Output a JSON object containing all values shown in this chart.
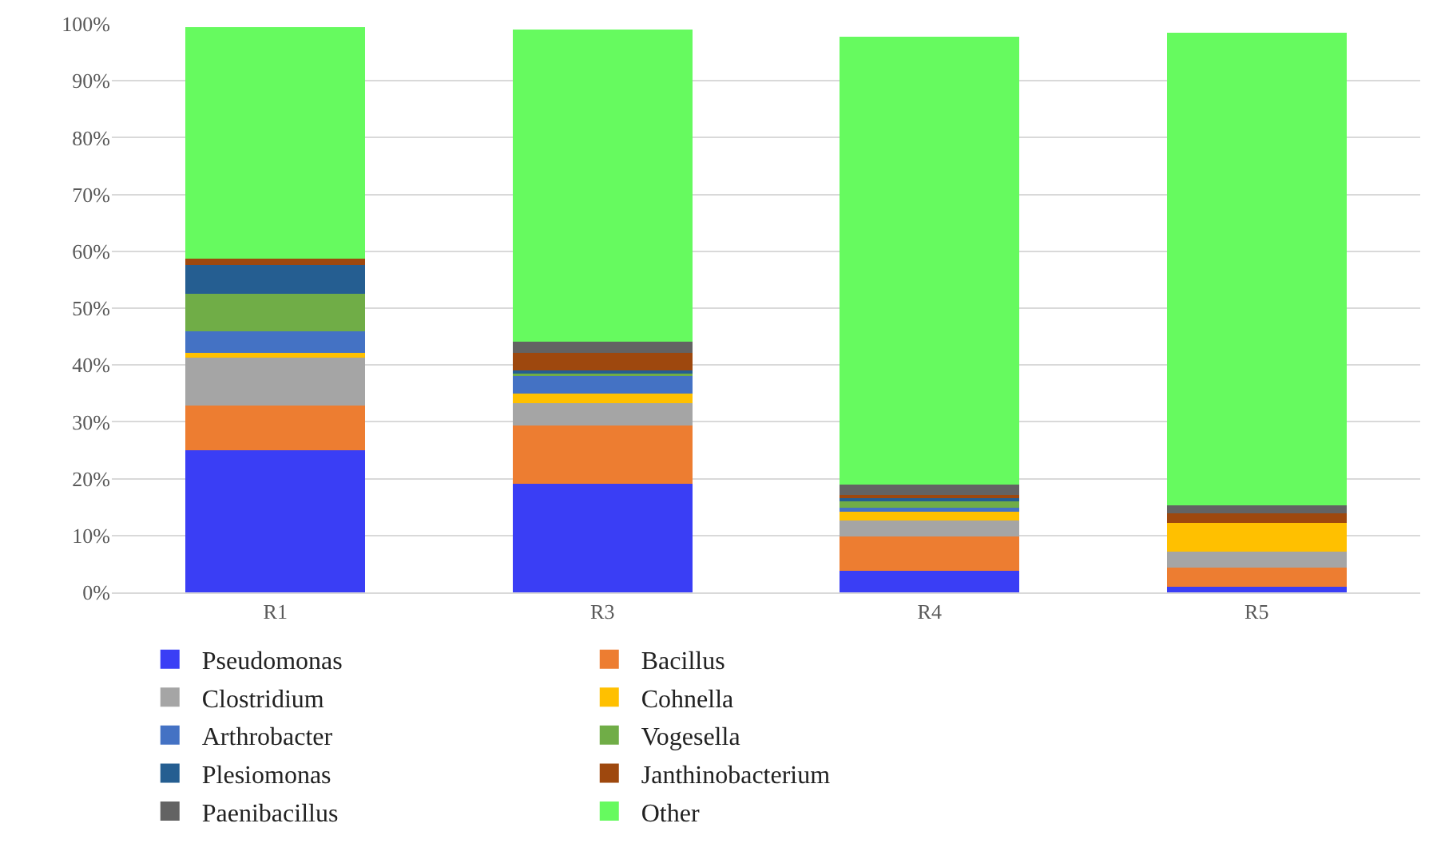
{
  "chart_data": {
    "type": "bar",
    "stacked": true,
    "categories": [
      "R1",
      "R3",
      "R4",
      "R5"
    ],
    "series": [
      {
        "name": "Pseudomonas",
        "color": "#3a3ef5",
        "values": [
          25.0,
          19.1,
          3.8,
          1.0
        ]
      },
      {
        "name": "Bacillus",
        "color": "#ed7d31",
        "values": [
          7.8,
          10.2,
          6.0,
          3.4
        ]
      },
      {
        "name": "Clostridium",
        "color": "#a5a5a5",
        "values": [
          8.5,
          4.0,
          2.8,
          2.7
        ]
      },
      {
        "name": "Cohnella",
        "color": "#ffc000",
        "values": [
          0.8,
          1.7,
          1.6,
          5.1
        ]
      },
      {
        "name": "Arthrobacter",
        "color": "#4472c4",
        "values": [
          3.8,
          3.1,
          0.7,
          0.0
        ]
      },
      {
        "name": "Vogesella",
        "color": "#70ad47",
        "values": [
          6.6,
          0.6,
          1.2,
          0.0
        ]
      },
      {
        "name": "Plesiomonas",
        "color": "#255e91",
        "values": [
          5.1,
          0.4,
          0.5,
          0.0
        ]
      },
      {
        "name": "Janthinobacterium",
        "color": "#9e480e",
        "values": [
          1.1,
          3.0,
          0.6,
          1.7
        ]
      },
      {
        "name": "Paenibacillus",
        "color": "#636363",
        "values": [
          0.0,
          2.0,
          1.8,
          1.4
        ]
      },
      {
        "name": "Other",
        "color": "#66fa5f",
        "values": [
          40.8,
          54.9,
          78.7,
          83.2
        ]
      }
    ],
    "ylim": [
      0,
      100
    ],
    "yticks": [
      {
        "value": 0,
        "label": "0%"
      },
      {
        "value": 10,
        "label": "10%"
      },
      {
        "value": 20,
        "label": "20%"
      },
      {
        "value": 30,
        "label": "30%"
      },
      {
        "value": 40,
        "label": "40%"
      },
      {
        "value": 50,
        "label": "50%"
      },
      {
        "value": 60,
        "label": "60%"
      },
      {
        "value": 70,
        "label": "70%"
      },
      {
        "value": 80,
        "label": "80%"
      },
      {
        "value": 90,
        "label": "90%"
      },
      {
        "value": 100,
        "label": "100%"
      }
    ],
    "grid": "y",
    "legend": "bottom"
  }
}
